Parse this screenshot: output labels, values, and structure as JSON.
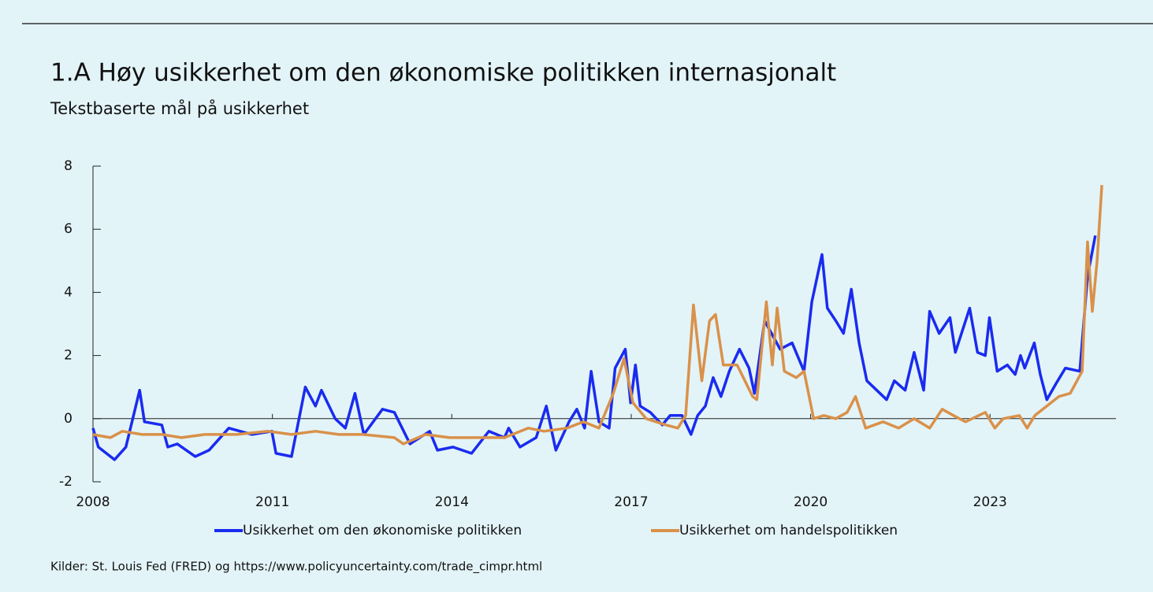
{
  "chart_data": {
    "type": "line",
    "title": "1.A Høy usikkerhet om den økonomiske politikken internasjonalt",
    "subtitle": "Tekstbaserte mål på usikkerhet",
    "source": "Kilder: St. Louis Fed (FRED) og https://www.policyuncertainty.com/trade_cimpr.html",
    "xlim": [
      2008,
      2025
    ],
    "xticks": [
      2008,
      2011,
      2014,
      2017,
      2020,
      2023
    ],
    "ylim": [
      -2,
      8
    ],
    "yticks": [
      -2,
      0,
      2,
      4,
      6,
      8
    ],
    "series": [
      {
        "name": "Usikkerhet om den økonomiske politikken",
        "color": "#1a2bf0",
        "x": [
          2008.0,
          2008.09,
          2008.36,
          2008.55,
          2008.69,
          2008.78,
          2008.86,
          2009.15,
          2009.25,
          2009.41,
          2009.71,
          2009.94,
          2010.27,
          2010.66,
          2010.99,
          2011.06,
          2011.32,
          2011.55,
          2011.72,
          2011.82,
          2012.05,
          2012.22,
          2012.38,
          2012.53,
          2012.84,
          2013.04,
          2013.17,
          2013.3,
          2013.63,
          2013.76,
          2014.02,
          2014.33,
          2014.62,
          2014.88,
          2014.95,
          2015.14,
          2015.41,
          2015.58,
          2015.74,
          2015.96,
          2016.09,
          2016.22,
          2016.33,
          2016.46,
          2016.63,
          2016.73,
          2016.9,
          2016.99,
          2017.07,
          2017.15,
          2017.32,
          2017.52,
          2017.65,
          2017.85,
          2018.0,
          2018.11,
          2018.24,
          2018.37,
          2018.5,
          2018.64,
          2018.81,
          2018.97,
          2019.06,
          2019.23,
          2019.49,
          2019.69,
          2019.89,
          2020.02,
          2020.19,
          2020.28,
          2020.42,
          2020.55,
          2020.68,
          2020.81,
          2020.94,
          2021.27,
          2021.4,
          2021.58,
          2021.73,
          2021.89,
          2021.99,
          2022.15,
          2022.33,
          2022.42,
          2022.66,
          2022.79,
          2022.92,
          2022.99,
          2023.12,
          2023.29,
          2023.42,
          2023.51,
          2023.58,
          2023.74,
          2023.84,
          2023.95,
          2024.1,
          2024.26,
          2024.5,
          2024.63,
          2024.76
        ],
        "values": [
          -0.3,
          -0.9,
          -1.3,
          -0.9,
          0.2,
          0.9,
          -0.1,
          -0.2,
          -0.9,
          -0.8,
          -1.2,
          -1.0,
          -0.3,
          -0.5,
          -0.4,
          -1.1,
          -1.2,
          1.0,
          0.4,
          0.9,
          0.0,
          -0.3,
          0.8,
          -0.5,
          0.3,
          0.2,
          -0.3,
          -0.8,
          -0.4,
          -1.0,
          -0.9,
          -1.1,
          -0.4,
          -0.6,
          -0.3,
          -0.9,
          -0.6,
          0.4,
          -1.0,
          -0.1,
          0.3,
          -0.3,
          1.5,
          -0.1,
          -0.3,
          1.6,
          2.2,
          0.5,
          1.7,
          0.4,
          0.2,
          -0.2,
          0.1,
          0.1,
          -0.5,
          0.1,
          0.4,
          1.3,
          0.7,
          1.5,
          2.2,
          1.6,
          0.8,
          3.1,
          2.2,
          2.4,
          1.5,
          3.7,
          5.2,
          3.5,
          3.1,
          2.7,
          4.1,
          2.4,
          1.2,
          0.6,
          1.2,
          0.9,
          2.1,
          0.9,
          3.4,
          2.7,
          3.2,
          2.1,
          3.5,
          2.1,
          2.0,
          3.2,
          1.5,
          1.7,
          1.4,
          2.0,
          1.6,
          2.4,
          1.4,
          0.6,
          1.1,
          1.6,
          1.5,
          4.5,
          5.8
        ]
      },
      {
        "name": "Usikkerhet om handelspolitikken",
        "color": "#d9914a",
        "x": [
          2008.0,
          2008.29,
          2008.49,
          2008.82,
          2009.15,
          2009.48,
          2009.87,
          2010.4,
          2010.93,
          2011.32,
          2011.72,
          2012.11,
          2012.51,
          2013.04,
          2013.19,
          2013.56,
          2013.96,
          2014.35,
          2014.88,
          2015.28,
          2015.54,
          2015.93,
          2016.2,
          2016.46,
          2016.7,
          2016.88,
          2017.03,
          2017.25,
          2017.58,
          2017.78,
          2017.91,
          2018.04,
          2018.18,
          2018.31,
          2018.41,
          2018.54,
          2018.77,
          2019.03,
          2019.1,
          2019.26,
          2019.36,
          2019.44,
          2019.56,
          2019.76,
          2019.89,
          2020.05,
          2020.22,
          2020.42,
          2020.61,
          2020.75,
          2020.92,
          2021.21,
          2021.47,
          2021.73,
          2021.99,
          2022.2,
          2022.39,
          2022.59,
          2022.92,
          2023.08,
          2023.22,
          2023.49,
          2023.62,
          2023.75,
          2023.95,
          2024.15,
          2024.34,
          2024.54,
          2024.63,
          2024.71,
          2024.79,
          2024.87
        ],
        "values": [
          -0.5,
          -0.6,
          -0.4,
          -0.5,
          -0.5,
          -0.6,
          -0.5,
          -0.5,
          -0.4,
          -0.5,
          -0.4,
          -0.5,
          -0.5,
          -0.6,
          -0.8,
          -0.5,
          -0.6,
          -0.6,
          -0.6,
          -0.3,
          -0.4,
          -0.3,
          -0.1,
          -0.3,
          0.8,
          1.9,
          0.5,
          0.0,
          -0.2,
          -0.3,
          0.1,
          3.6,
          1.2,
          3.1,
          3.3,
          1.7,
          1.7,
          0.7,
          0.6,
          3.7,
          1.7,
          3.5,
          1.5,
          1.3,
          1.5,
          0.0,
          0.1,
          0.0,
          0.2,
          0.7,
          -0.3,
          -0.1,
          -0.3,
          0.0,
          -0.3,
          0.3,
          0.1,
          -0.1,
          0.2,
          -0.3,
          0.0,
          0.1,
          -0.3,
          0.1,
          0.4,
          0.7,
          0.8,
          1.5,
          5.6,
          3.4,
          5.0,
          7.4
        ]
      }
    ]
  }
}
